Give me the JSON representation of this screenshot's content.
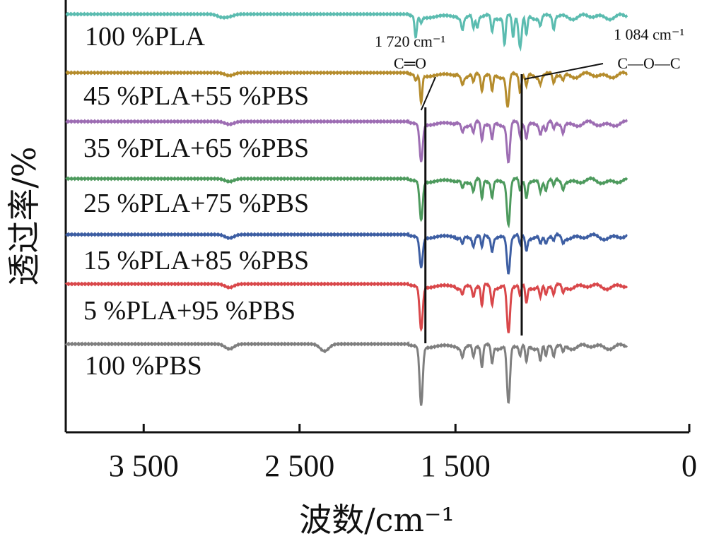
{
  "chart_data": {
    "type": "line",
    "xlabel": "波数/cm⁻¹",
    "ylabel": "透过率/%",
    "xlim": [
      4000,
      0
    ],
    "x_ticks": [
      {
        "value": 3500,
        "label": "3 500"
      },
      {
        "value": 2500,
        "label": "2 500"
      },
      {
        "value": 1500,
        "label": "1 500"
      },
      {
        "value": 0,
        "label": "0"
      }
    ],
    "grid": false,
    "annotations": [
      {
        "wavenumber": 1720,
        "label1": "1 720 cm⁻¹",
        "label2": "C═O"
      },
      {
        "wavenumber": 1084,
        "label1": "1 084 cm⁻¹",
        "label2": "C—O—C"
      }
    ],
    "series": [
      {
        "name": "100 %PLA",
        "color": "#5bbcb0",
        "offset": 0,
        "peaks": [
          [
            3000,
            4
          ],
          [
            2950,
            3
          ],
          [
            1755,
            30
          ],
          [
            1720,
            8
          ],
          [
            1455,
            15
          ],
          [
            1385,
            18
          ],
          [
            1360,
            16
          ],
          [
            1265,
            22
          ],
          [
            1185,
            40
          ],
          [
            1130,
            30
          ],
          [
            1085,
            44
          ],
          [
            1045,
            28
          ],
          [
            955,
            12
          ],
          [
            870,
            18
          ]
        ]
      },
      {
        "name": "45 %PLA+55 %PBS",
        "color": "#b58c2c",
        "offset": 1,
        "peaks": [
          [
            2950,
            4
          ],
          [
            1720,
            38
          ],
          [
            1755,
            8
          ],
          [
            1455,
            10
          ],
          [
            1385,
            12
          ],
          [
            1330,
            22
          ],
          [
            1265,
            24
          ],
          [
            1165,
            46
          ],
          [
            1085,
            24
          ],
          [
            1045,
            16
          ],
          [
            955,
            10
          ],
          [
            870,
            12
          ],
          [
            810,
            8
          ]
        ]
      },
      {
        "name": "35 %PLA+65 %PBS",
        "color": "#9d6db3",
        "offset": 2,
        "peaks": [
          [
            2950,
            4
          ],
          [
            1720,
            52
          ],
          [
            1455,
            10
          ],
          [
            1385,
            14
          ],
          [
            1330,
            24
          ],
          [
            1265,
            22
          ],
          [
            1160,
            54
          ],
          [
            1085,
            18
          ],
          [
            1045,
            20
          ],
          [
            955,
            12
          ],
          [
            920,
            10
          ],
          [
            870,
            10
          ],
          [
            810,
            12
          ]
        ]
      },
      {
        "name": "25 %PLA+75 %PBS",
        "color": "#4d9a5d",
        "offset": 3,
        "peaks": [
          [
            2950,
            4
          ],
          [
            1720,
            54
          ],
          [
            1455,
            10
          ],
          [
            1385,
            14
          ],
          [
            1330,
            28
          ],
          [
            1265,
            22
          ],
          [
            1160,
            60
          ],
          [
            1085,
            16
          ],
          [
            1045,
            22
          ],
          [
            955,
            14
          ],
          [
            920,
            12
          ],
          [
            870,
            10
          ],
          [
            810,
            10
          ]
        ]
      },
      {
        "name": "15 %PLA+85 %PBS",
        "color": "#3d5ea3",
        "offset": 4,
        "peaks": [
          [
            2950,
            5
          ],
          [
            1720,
            42
          ],
          [
            1455,
            10
          ],
          [
            1385,
            12
          ],
          [
            1330,
            18
          ],
          [
            1265,
            18
          ],
          [
            1160,
            50
          ],
          [
            1085,
            14
          ],
          [
            1045,
            18
          ],
          [
            955,
            10
          ],
          [
            920,
            8
          ],
          [
            870,
            8
          ],
          [
            810,
            8
          ]
        ]
      },
      {
        "name": "5 %PLA+95 %PBS",
        "color": "#d9474a",
        "offset": 5,
        "peaks": [
          [
            2950,
            5
          ],
          [
            1720,
            60
          ],
          [
            1455,
            10
          ],
          [
            1385,
            14
          ],
          [
            1330,
            30
          ],
          [
            1265,
            24
          ],
          [
            1160,
            66
          ],
          [
            1085,
            16
          ],
          [
            1045,
            24
          ],
          [
            955,
            16
          ],
          [
            920,
            12
          ],
          [
            870,
            12
          ],
          [
            810,
            10
          ]
        ]
      },
      {
        "name": "100 %PBS",
        "color": "#7f7f7f",
        "offset": 6,
        "peaks": [
          [
            2950,
            7
          ],
          [
            2340,
            10
          ],
          [
            1720,
            82
          ],
          [
            1455,
            12
          ],
          [
            1385,
            16
          ],
          [
            1330,
            30
          ],
          [
            1265,
            24
          ],
          [
            1160,
            82
          ],
          [
            1085,
            14
          ],
          [
            1045,
            24
          ],
          [
            955,
            20
          ],
          [
            920,
            16
          ],
          [
            870,
            14
          ],
          [
            810,
            10
          ]
        ]
      }
    ]
  }
}
